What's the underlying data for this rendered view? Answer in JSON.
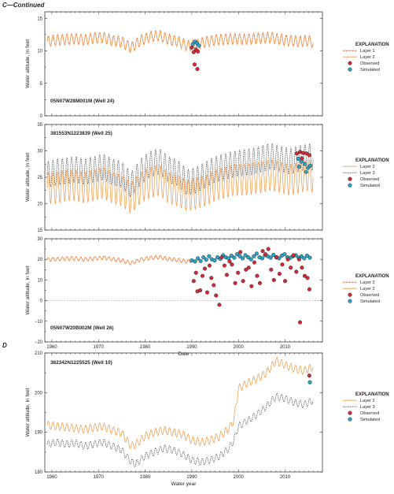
{
  "section_c_label": "C—Continued",
  "section_d_label": "D",
  "colors": {
    "layer1": "#e8411f",
    "layer2": "#f29a4a",
    "layer3": "#444444",
    "observed": "#d42a37",
    "simulated": "#2aa5c8",
    "axis": "#231f20"
  },
  "chart_data": [
    {
      "id": "well24",
      "type": "line",
      "well_label": "05N07W28M001M (Well 24)",
      "ylabel": "Water altitude, in feet",
      "xlabel": "",
      "xlim": [
        1958.5,
        2018
      ],
      "ylim": [
        0,
        16
      ],
      "yticks": [
        0,
        5,
        10,
        15
      ],
      "xticks": [
        1960,
        1970,
        1980,
        1990,
        2000,
        2010
      ],
      "show_x_tick_labels": false,
      "legend": {
        "title": "EXPLANATION",
        "placement": "right",
        "entries": [
          {
            "label": "Layer 1",
            "kind": "line",
            "color_key": "layer1",
            "dash": true
          },
          {
            "label": "Layer 2",
            "kind": "line",
            "color_key": "layer2",
            "dash": false
          },
          {
            "label": "Observed",
            "kind": "point",
            "color_key": "observed"
          },
          {
            "label": "Simulated",
            "kind": "point",
            "color_key": "simulated"
          }
        ]
      },
      "series": [
        {
          "name": "Layer 1",
          "color_key": "layer1",
          "dash": "2.5,1.2",
          "x": [
            1959,
            1961,
            1963,
            1965,
            1967,
            1969,
            1971,
            1973,
            1975,
            1977,
            1979,
            1981,
            1983,
            1985,
            1987,
            1989,
            1991,
            1993,
            1995,
            1997,
            1999,
            2001,
            2003,
            2005,
            2007,
            2009,
            2011,
            2013,
            2015,
            2016
          ],
          "y": [
            11.5,
            11.7,
            11.8,
            11.9,
            11.7,
            12.0,
            12.1,
            11.6,
            11.4,
            10.5,
            11.6,
            12.2,
            12.4,
            11.8,
            11.5,
            10.8,
            11.0,
            11.4,
            11.7,
            11.8,
            11.9,
            11.8,
            11.9,
            12.0,
            12.1,
            11.8,
            11.6,
            11.5,
            11.6,
            11.3
          ],
          "seasonal_amplitude": 0.8
        },
        {
          "name": "Layer 2",
          "color_key": "layer2",
          "dash": "",
          "x": [
            1959,
            1961,
            1963,
            1965,
            1967,
            1969,
            1971,
            1973,
            1975,
            1977,
            1979,
            1981,
            1983,
            1985,
            1987,
            1989,
            1991,
            1993,
            1995,
            1997,
            1999,
            2001,
            2003,
            2005,
            2007,
            2009,
            2011,
            2013,
            2015,
            2016
          ],
          "y": [
            11.4,
            11.6,
            11.7,
            11.8,
            11.6,
            11.9,
            12.0,
            11.5,
            11.3,
            10.4,
            11.5,
            12.1,
            12.3,
            11.7,
            11.4,
            10.7,
            10.9,
            11.3,
            11.6,
            11.7,
            11.8,
            11.7,
            11.8,
            11.9,
            12.0,
            11.7,
            11.5,
            11.4,
            11.5,
            11.2
          ],
          "seasonal_amplitude": 0.8
        }
      ],
      "observed": {
        "x": [
          1990.0,
          1990.4,
          1990.9,
          1991.3,
          1990.6,
          1991.2
        ],
        "y": [
          10.5,
          9.8,
          10.2,
          9.9,
          7.9,
          7.2
        ]
      },
      "simulated": {
        "x": [
          1990.2,
          1990.7,
          1991.1,
          1991.5
        ],
        "y": [
          11.0,
          11.4,
          11.2,
          10.8
        ]
      }
    },
    {
      "id": "well25",
      "type": "line",
      "well_label": "381553N1223839 (Well 25)",
      "ylabel": "Water altitude, in feet",
      "xlabel": "",
      "xlim": [
        1958.5,
        2018
      ],
      "ylim": [
        15,
        35
      ],
      "yticks": [
        15,
        20,
        25,
        30,
        35
      ],
      "xticks": [
        1960,
        1970,
        1980,
        1990,
        2000,
        2010
      ],
      "show_x_tick_labels": false,
      "legend": {
        "title": "EXPLANATION",
        "placement": "right",
        "entries": [
          {
            "label": "Layer 2",
            "kind": "line",
            "color_key": "layer2",
            "dash": false
          },
          {
            "label": "Layer 3",
            "kind": "line",
            "color_key": "layer3",
            "dash": true
          },
          {
            "label": "Observed",
            "kind": "point",
            "color_key": "observed"
          },
          {
            "label": "Simulated",
            "kind": "point",
            "color_key": "simulated"
          }
        ]
      },
      "series": [
        {
          "name": "Layer 3",
          "color_key": "layer3",
          "dash": "1.3,1",
          "x": [
            1959,
            1961,
            1963,
            1965,
            1967,
            1969,
            1971,
            1973,
            1975,
            1977,
            1979,
            1981,
            1983,
            1985,
            1987,
            1989,
            1991,
            1993,
            1995,
            1997,
            1999,
            2001,
            2003,
            2005,
            2007,
            2009,
            2011,
            2013,
            2015,
            2016
          ],
          "y": [
            25.5,
            26.0,
            26.2,
            26.5,
            26.0,
            26.5,
            27.0,
            26.0,
            25.5,
            23.5,
            26.0,
            27.5,
            28.0,
            26.5,
            25.8,
            24.0,
            24.5,
            25.5,
            26.5,
            27.0,
            27.5,
            27.8,
            28.0,
            28.5,
            29.0,
            28.5,
            28.0,
            28.5,
            29.0,
            28.5
          ],
          "seasonal_amplitude": 2.5
        },
        {
          "name": "Layer 2",
          "color_key": "layer2",
          "dash": "",
          "x": [
            1959,
            1961,
            1963,
            1965,
            1967,
            1969,
            1971,
            1973,
            1975,
            1977,
            1979,
            1981,
            1983,
            1985,
            1987,
            1989,
            1991,
            1993,
            1995,
            1997,
            1999,
            2001,
            2003,
            2005,
            2007,
            2009,
            2011,
            2013,
            2015,
            2016
          ],
          "y": [
            23.0,
            23.0,
            23.5,
            23.5,
            23.0,
            23.5,
            24.0,
            23.0,
            22.5,
            21.0,
            23.0,
            24.0,
            24.5,
            23.0,
            22.5,
            21.5,
            22.0,
            22.5,
            23.5,
            24.0,
            24.5,
            24.5,
            24.8,
            25.0,
            25.5,
            25.0,
            24.5,
            25.0,
            25.5,
            25.0
          ],
          "seasonal_amplitude": 3.0
        }
      ],
      "observed": {
        "x": [
          2012.5,
          2013.2,
          2013.9,
          2014.6,
          2015.2,
          2013.6
        ],
        "y": [
          29.5,
          29.8,
          29.6,
          29.5,
          29.2,
          28.6
        ]
      },
      "simulated": {
        "x": [
          2012.8,
          2013.5,
          2014.2,
          2014.9,
          2015.4,
          2013.0,
          2014.5
        ],
        "y": [
          28.5,
          28.0,
          27.5,
          26.8,
          27.2,
          27.0,
          26.0
        ]
      }
    },
    {
      "id": "well26",
      "type": "line",
      "well_label": "05N07W20B002M (Well 26)",
      "ylabel": "Water altitude, in feet",
      "xlabel": "Date",
      "xlim": [
        1958.5,
        2018
      ],
      "ylim": [
        -20,
        30
      ],
      "yticks": [
        -20,
        -10,
        0,
        10,
        20,
        30
      ],
      "xticks": [
        1960,
        1970,
        1980,
        1990,
        2000,
        2010
      ],
      "show_x_tick_labels": true,
      "zero_line": true,
      "legend": {
        "title": "EXPLANATION",
        "placement": "right",
        "entries": [
          {
            "label": "Layer 2",
            "kind": "line",
            "color_key": "layer1",
            "dash": true
          },
          {
            "label": "Layer 2",
            "kind": "line",
            "color_key": "layer2",
            "dash": false
          },
          {
            "label": "Observed",
            "kind": "point",
            "color_key": "observed"
          },
          {
            "label": "Simulated",
            "kind": "point",
            "color_key": "simulated"
          }
        ]
      },
      "series": [
        {
          "name": "Layer 2",
          "color_key": "layer1",
          "dash": "2.5,1.2",
          "x": [
            1959,
            1961,
            1963,
            1965,
            1967,
            1969,
            1971,
            1973,
            1975,
            1977,
            1979,
            1981,
            1983,
            1985,
            1987,
            1989,
            1990
          ],
          "y": [
            20.0,
            20.2,
            20.5,
            20.5,
            20.0,
            20.5,
            21.0,
            20.2,
            19.5,
            18.2,
            20.0,
            20.8,
            21.2,
            20.2,
            19.8,
            19.0,
            19.5
          ],
          "seasonal_amplitude": 0.9
        },
        {
          "name": "Layer 2",
          "color_key": "layer2",
          "dash": "",
          "x": [
            1959,
            1961,
            1963,
            1965,
            1967,
            1969,
            1971,
            1973,
            1975,
            1977,
            1979,
            1981,
            1983,
            1985,
            1987,
            1989,
            1990
          ],
          "y": [
            19.8,
            20.0,
            20.3,
            20.3,
            19.8,
            20.3,
            20.8,
            20.0,
            19.3,
            18.0,
            19.8,
            20.6,
            21.0,
            20.0,
            19.6,
            18.8,
            19.3
          ],
          "seasonal_amplitude": 0.9
        }
      ],
      "observed": {
        "x": [
          1990.4,
          1990.9,
          1991.2,
          1991.8,
          1992.3,
          1992.8,
          1993.3,
          1993.8,
          1994.2,
          1994.7,
          1995.2,
          1995.9,
          1996.4,
          1997.0,
          1997.5,
          1998.1,
          1998.6,
          1999.3,
          1999.9,
          2000.4,
          2001.0,
          2001.6,
          2002.2,
          2002.8,
          2003.4,
          2004.0,
          2004.6,
          2005.2,
          2005.8,
          2006.4,
          2007.0,
          2007.6,
          2008.2,
          2008.8,
          2009.4,
          2010.0,
          2010.6,
          2011.2,
          2011.8,
          2012.4,
          2013.0,
          2013.6,
          2014.2,
          2014.8,
          2015.2,
          2013.2
        ],
        "y": [
          9.5,
          13.5,
          4.5,
          5.0,
          12.0,
          15.5,
          4.0,
          17.0,
          11.0,
          7.5,
          2.5,
          -2.0,
          21.0,
          17.0,
          12.5,
          19.0,
          17.5,
          8.5,
          13.5,
          23.5,
          9.5,
          15.0,
          16.0,
          7.0,
          18.5,
          12.0,
          8.5,
          24.0,
          22.5,
          25.0,
          15.0,
          10.0,
          21.0,
          13.0,
          17.5,
          9.5,
          20.0,
          16.0,
          22.0,
          14.0,
          20.0,
          16.0,
          12.0,
          11.0,
          5.5,
          -10.5
        ]
      },
      "simulated": {
        "x": [
          1990.0,
          1990.7,
          1991.3,
          1991.9,
          1992.5,
          1993.1,
          1993.7,
          1994.3,
          1994.9,
          1995.5,
          1996.1,
          1996.7,
          1997.3,
          1997.9,
          1998.5,
          1999.1,
          1999.7,
          2000.3,
          2000.9,
          2001.5,
          2002.1,
          2002.7,
          2003.3,
          2003.9,
          2004.5,
          2005.1,
          2005.7,
          2006.3,
          2006.9,
          2007.5,
          2008.1,
          2008.7,
          2009.3,
          2009.9,
          2010.5,
          2011.1,
          2011.7,
          2012.3,
          2012.9,
          2013.5,
          2014.1,
          2014.7,
          2015.3
        ],
        "y": [
          19.5,
          19.0,
          20.5,
          19.2,
          21.0,
          19.8,
          21.5,
          20.0,
          19.5,
          21.0,
          20.2,
          22.0,
          21.0,
          20.5,
          21.8,
          20.8,
          22.5,
          21.5,
          20.5,
          22.0,
          21.0,
          20.0,
          21.5,
          22.8,
          21.0,
          20.5,
          22.0,
          21.5,
          20.8,
          22.2,
          21.0,
          20.5,
          21.8,
          22.5,
          21.0,
          20.8,
          21.5,
          22.0,
          20.8,
          21.5,
          20.5,
          21.8,
          20.8
        ]
      }
    },
    {
      "id": "well10",
      "type": "line",
      "section": "D",
      "well_label": "382342N1225525 (Well 10)",
      "ylabel": "Water altitude, in feet",
      "xlabel": "Water year",
      "xlim": [
        1958.5,
        2018
      ],
      "ylim": [
        180,
        210
      ],
      "yticks": [
        180,
        190,
        200,
        210
      ],
      "xticks": [
        1960,
        1970,
        1980,
        1990,
        2000,
        2010
      ],
      "show_x_tick_labels": true,
      "legend": {
        "title": "EXPLANATION",
        "placement": "right",
        "entries": [
          {
            "label": "Layer 2",
            "kind": "line",
            "color_key": "layer2",
            "dash": false
          },
          {
            "label": "Layer 3",
            "kind": "line",
            "color_key": "layer3",
            "dash": true
          },
          {
            "label": "Observed",
            "kind": "point",
            "color_key": "observed"
          },
          {
            "label": "Simulated",
            "kind": "point",
            "color_key": "simulated"
          }
        ]
      },
      "series": [
        {
          "name": "Layer 2",
          "color_key": "layer2",
          "dash": "",
          "x": [
            1959,
            1961,
            1963,
            1965,
            1967,
            1969,
            1971,
            1973,
            1975,
            1977,
            1978,
            1980,
            1982,
            1984,
            1986,
            1988,
            1990,
            1992,
            1994,
            1996,
            1998,
            1999,
            2000,
            2002,
            2004,
            2006,
            2008,
            2010,
            2012,
            2014,
            2016
          ],
          "y": [
            191.8,
            191.5,
            191.3,
            191.0,
            190.7,
            191.2,
            191.5,
            190.5,
            189.8,
            186.5,
            187.0,
            189.0,
            190.0,
            190.5,
            190.0,
            189.5,
            188.0,
            187.5,
            188.0,
            189.0,
            191.0,
            193.0,
            201.0,
            202.5,
            203.5,
            205.0,
            208.0,
            207.0,
            206.0,
            205.5,
            206.5
          ],
          "seasonal_amplitude": 1.0
        },
        {
          "name": "Layer 3",
          "color_key": "layer3",
          "dash": "1.3,1",
          "x": [
            1959,
            1961,
            1963,
            1965,
            1967,
            1969,
            1971,
            1973,
            1975,
            1977,
            1978,
            1980,
            1982,
            1984,
            1986,
            1988,
            1990,
            1992,
            1994,
            1996,
            1998,
            1999,
            2000,
            2002,
            2004,
            2006,
            2008,
            2010,
            2012,
            2014,
            2016
          ],
          "y": [
            187.0,
            187.5,
            187.0,
            187.3,
            186.5,
            187.0,
            187.5,
            186.5,
            185.5,
            182.5,
            182.0,
            184.0,
            185.0,
            186.0,
            185.5,
            184.5,
            183.0,
            182.5,
            183.0,
            184.0,
            186.0,
            188.0,
            191.5,
            193.0,
            194.5,
            196.5,
            199.0,
            198.5,
            197.5,
            197.0,
            198.0
          ],
          "seasonal_amplitude": 0.9
        }
      ],
      "observed": {
        "x": [
          2015.2
        ],
        "y": [
          204.3
        ]
      },
      "simulated": {
        "x": [
          2015.3
        ],
        "y": [
          202.6
        ]
      }
    }
  ]
}
